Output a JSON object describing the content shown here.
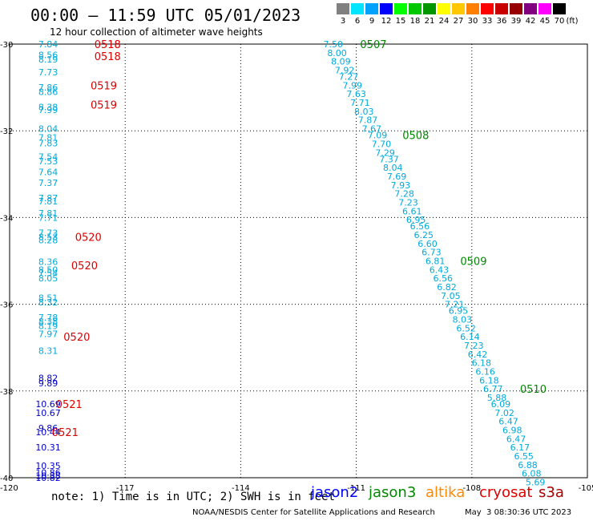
{
  "title": "00:00 – 11:59 UTC 05/01/2023",
  "subtitle": "12 hour collection of altimeter wave heights",
  "legend": {
    "unit": "(ft)",
    "items": [
      {
        "label": "3",
        "color": "#808080"
      },
      {
        "label": "6",
        "color": "#00e5ff"
      },
      {
        "label": "9",
        "color": "#00a2ff"
      },
      {
        "label": "12",
        "color": "#0000ff"
      },
      {
        "label": "15",
        "color": "#00ff00"
      },
      {
        "label": "18",
        "color": "#00c800"
      },
      {
        "label": "21",
        "color": "#009600"
      },
      {
        "label": "24",
        "color": "#ffff00"
      },
      {
        "label": "27",
        "color": "#ffc800"
      },
      {
        "label": "30",
        "color": "#ff8000"
      },
      {
        "label": "33",
        "color": "#ff0000"
      },
      {
        "label": "36",
        "color": "#c80000"
      },
      {
        "label": "39",
        "color": "#960000"
      },
      {
        "label": "42",
        "color": "#800080"
      },
      {
        "label": "45",
        "color": "#ff00ff"
      },
      {
        "label": "70",
        "color": "#000000"
      }
    ]
  },
  "axes": {
    "lon_ticks": [
      "-120",
      "-117",
      "-114",
      "-111",
      "-108",
      "-105"
    ],
    "lon_values": [
      -120,
      -117,
      -114,
      -111,
      -108,
      -105
    ],
    "lat_ticks": [
      "-30",
      "-32",
      "-34",
      "-36",
      "-38",
      "-40"
    ],
    "lat_values": [
      -30,
      -32,
      -34,
      -36,
      -38,
      -40
    ]
  },
  "colors": {
    "cyan": "#00aadd",
    "blue": "#0000cc",
    "time_red": "#dd0000",
    "time_green": "#008800",
    "jason2": "#0000ff",
    "jason3": "#008800",
    "altika": "#ff8800",
    "cryosat": "#dd0000",
    "s3a": "#aa0000"
  },
  "tracks": [
    {
      "name": "west",
      "lon": -119.0,
      "points": [
        {
          "lat": -30.0,
          "v": "7.84",
          "c": "cyan"
        },
        {
          "lat": -30.25,
          "v": "8.56",
          "c": "cyan"
        },
        {
          "lat": -30.35,
          "v": "8.19",
          "c": "cyan"
        },
        {
          "lat": -30.65,
          "v": "7.73",
          "c": "cyan"
        },
        {
          "lat": -31.0,
          "v": "7.86",
          "c": "cyan"
        },
        {
          "lat": -31.1,
          "v": "8.86",
          "c": "cyan"
        },
        {
          "lat": -31.45,
          "v": "8.38",
          "c": "cyan"
        },
        {
          "lat": -31.52,
          "v": "7.99",
          "c": "cyan"
        },
        {
          "lat": -31.95,
          "v": "8.04",
          "c": "cyan"
        },
        {
          "lat": -32.15,
          "v": "7.81",
          "c": "cyan"
        },
        {
          "lat": -32.28,
          "v": "7.83",
          "c": "cyan"
        },
        {
          "lat": -32.6,
          "v": "7.54",
          "c": "cyan"
        },
        {
          "lat": -32.7,
          "v": "7.53",
          "c": "cyan"
        },
        {
          "lat": -32.95,
          "v": "7.64",
          "c": "cyan"
        },
        {
          "lat": -33.2,
          "v": "7.37",
          "c": "cyan"
        },
        {
          "lat": -33.55,
          "v": "7.87",
          "c": "cyan"
        },
        {
          "lat": -33.62,
          "v": "7.81",
          "c": "cyan"
        },
        {
          "lat": -33.9,
          "v": "7.81",
          "c": "cyan"
        },
        {
          "lat": -34.0,
          "v": "7.71",
          "c": "cyan"
        },
        {
          "lat": -34.35,
          "v": "7.73",
          "c": "cyan"
        },
        {
          "lat": -34.45,
          "v": "8.53",
          "c": "cyan"
        },
        {
          "lat": -34.52,
          "v": "8.28",
          "c": "cyan"
        },
        {
          "lat": -35.02,
          "v": "8.36",
          "c": "cyan"
        },
        {
          "lat": -35.2,
          "v": "8.50",
          "c": "cyan"
        },
        {
          "lat": -35.28,
          "v": "7.54",
          "c": "cyan"
        },
        {
          "lat": -35.4,
          "v": "8.05",
          "c": "cyan"
        },
        {
          "lat": -35.85,
          "v": "8.51",
          "c": "cyan"
        },
        {
          "lat": -35.95,
          "v": "8.32",
          "c": "cyan"
        },
        {
          "lat": -36.3,
          "v": "7.78",
          "c": "cyan"
        },
        {
          "lat": -36.4,
          "v": "8.38",
          "c": "cyan"
        },
        {
          "lat": -36.5,
          "v": "8.19",
          "c": "cyan"
        },
        {
          "lat": -36.68,
          "v": "7.97",
          "c": "cyan"
        },
        {
          "lat": -37.07,
          "v": "8.31",
          "c": "cyan"
        },
        {
          "lat": -37.7,
          "v": "8.82",
          "c": "blue"
        },
        {
          "lat": -37.82,
          "v": "9.89",
          "c": "blue"
        },
        {
          "lat": -38.3,
          "v": "10.69",
          "c": "blue"
        },
        {
          "lat": -38.5,
          "v": "10.67",
          "c": "blue"
        },
        {
          "lat": -38.85,
          "v": "9.86",
          "c": "blue"
        },
        {
          "lat": -38.95,
          "v": "10.44",
          "c": "blue"
        },
        {
          "lat": -39.3,
          "v": "10.31",
          "c": "blue"
        },
        {
          "lat": -39.72,
          "v": "10.35",
          "c": "blue"
        },
        {
          "lat": -39.88,
          "v": "10.86",
          "c": "blue"
        },
        {
          "lat": -39.95,
          "v": "10.38",
          "c": "blue"
        },
        {
          "lat": -40.0,
          "v": "10.82",
          "c": "blue"
        }
      ],
      "times": [
        {
          "lat": -30.0,
          "lon": -117.8,
          "t": "0518",
          "c": "time_red"
        },
        {
          "lat": -30.28,
          "lon": -117.8,
          "t": "0518",
          "c": "time_red"
        },
        {
          "lat": -30.95,
          "lon": -117.9,
          "t": "0519",
          "c": "time_red"
        },
        {
          "lat": -31.4,
          "lon": -117.9,
          "t": "0519",
          "c": "time_red"
        },
        {
          "lat": -34.45,
          "lon": -118.3,
          "t": "0520",
          "c": "time_red"
        },
        {
          "lat": -35.1,
          "lon": -118.4,
          "t": "0520",
          "c": "time_red"
        },
        {
          "lat": -36.75,
          "lon": -118.6,
          "t": "0520",
          "c": "time_red"
        },
        {
          "lat": -38.3,
          "lon": -118.8,
          "t": "0521",
          "c": "time_red"
        },
        {
          "lat": -38.95,
          "lon": -118.9,
          "t": "0521",
          "c": "time_red"
        }
      ]
    },
    {
      "name": "east",
      "points": [
        {
          "lat": -30.0,
          "lon": -111.6,
          "v": "7.50",
          "c": "cyan"
        },
        {
          "lat": -30.2,
          "lon": -111.5,
          "v": "8.00",
          "c": "cyan"
        },
        {
          "lat": -30.4,
          "lon": -111.4,
          "v": "8.09",
          "c": "cyan"
        },
        {
          "lat": -30.6,
          "lon": -111.3,
          "v": "7.92",
          "c": "cyan"
        },
        {
          "lat": -30.75,
          "lon": -111.2,
          "v": "7.27",
          "c": "cyan"
        },
        {
          "lat": -30.95,
          "lon": -111.1,
          "v": "7.99",
          "c": "cyan"
        },
        {
          "lat": -31.15,
          "lon": -111.0,
          "v": "7.63",
          "c": "cyan"
        },
        {
          "lat": -31.35,
          "lon": -110.9,
          "v": "7.71",
          "c": "cyan"
        },
        {
          "lat": -31.55,
          "lon": -110.8,
          "v": "8.03",
          "c": "cyan"
        },
        {
          "lat": -31.75,
          "lon": -110.7,
          "v": "7.87",
          "c": "cyan"
        },
        {
          "lat": -31.95,
          "lon": -110.6,
          "v": "7.67",
          "c": "cyan"
        },
        {
          "lat": -32.1,
          "lon": -110.45,
          "v": "7.09",
          "c": "cyan"
        },
        {
          "lat": -32.3,
          "lon": -110.35,
          "v": "7.70",
          "c": "cyan"
        },
        {
          "lat": -32.5,
          "lon": -110.25,
          "v": "7.29",
          "c": "cyan"
        },
        {
          "lat": -32.65,
          "lon": -110.15,
          "v": "7.37",
          "c": "cyan"
        },
        {
          "lat": -32.85,
          "lon": -110.05,
          "v": "8.04",
          "c": "cyan"
        },
        {
          "lat": -33.05,
          "lon": -109.95,
          "v": "7.69",
          "c": "cyan"
        },
        {
          "lat": -33.25,
          "lon": -109.85,
          "v": "7.93",
          "c": "cyan"
        },
        {
          "lat": -33.45,
          "lon": -109.75,
          "v": "7.28",
          "c": "cyan"
        },
        {
          "lat": -33.65,
          "lon": -109.65,
          "v": "7.23",
          "c": "cyan"
        },
        {
          "lat": -33.85,
          "lon": -109.55,
          "v": "6.61",
          "c": "cyan"
        },
        {
          "lat": -34.05,
          "lon": -109.45,
          "v": "6.95",
          "c": "cyan"
        },
        {
          "lat": -34.2,
          "lon": -109.35,
          "v": "6.56",
          "c": "cyan"
        },
        {
          "lat": -34.4,
          "lon": -109.25,
          "v": "6.25",
          "c": "cyan"
        },
        {
          "lat": -34.6,
          "lon": -109.15,
          "v": "6.60",
          "c": "cyan"
        },
        {
          "lat": -34.8,
          "lon": -109.05,
          "v": "6.73",
          "c": "cyan"
        },
        {
          "lat": -35.0,
          "lon": -108.95,
          "v": "6.81",
          "c": "cyan"
        },
        {
          "lat": -35.2,
          "lon": -108.85,
          "v": "6.43",
          "c": "cyan"
        },
        {
          "lat": -35.4,
          "lon": -108.75,
          "v": "6.56",
          "c": "cyan"
        },
        {
          "lat": -35.6,
          "lon": -108.65,
          "v": "6.82",
          "c": "cyan"
        },
        {
          "lat": -35.8,
          "lon": -108.55,
          "v": "7.05",
          "c": "cyan"
        },
        {
          "lat": -36.0,
          "lon": -108.45,
          "v": "7.21",
          "c": "cyan"
        },
        {
          "lat": -36.15,
          "lon": -108.35,
          "v": "6.95",
          "c": "cyan"
        },
        {
          "lat": -36.35,
          "lon": -108.25,
          "v": "8.03",
          "c": "cyan"
        },
        {
          "lat": -36.55,
          "lon": -108.15,
          "v": "6.52",
          "c": "cyan"
        },
        {
          "lat": -36.75,
          "lon": -108.05,
          "v": "6.14",
          "c": "cyan"
        },
        {
          "lat": -36.95,
          "lon": -107.95,
          "v": "7.23",
          "c": "cyan"
        },
        {
          "lat": -37.15,
          "lon": -107.85,
          "v": "6.42",
          "c": "cyan"
        },
        {
          "lat": -37.35,
          "lon": -107.75,
          "v": "6.18",
          "c": "cyan"
        },
        {
          "lat": -37.55,
          "lon": -107.65,
          "v": "6.16",
          "c": "cyan"
        },
        {
          "lat": -37.75,
          "lon": -107.55,
          "v": "6.18",
          "c": "cyan"
        },
        {
          "lat": -37.95,
          "lon": -107.45,
          "v": "6.77",
          "c": "cyan"
        },
        {
          "lat": -38.15,
          "lon": -107.35,
          "v": "5.88",
          "c": "cyan"
        },
        {
          "lat": -38.3,
          "lon": -107.25,
          "v": "6.09",
          "c": "cyan"
        },
        {
          "lat": -38.5,
          "lon": -107.15,
          "v": "7.02",
          "c": "cyan"
        },
        {
          "lat": -38.7,
          "lon": -107.05,
          "v": "6.47",
          "c": "cyan"
        },
        {
          "lat": -38.9,
          "lon": -106.95,
          "v": "6.98",
          "c": "cyan"
        },
        {
          "lat": -39.1,
          "lon": -106.85,
          "v": "6.47",
          "c": "cyan"
        },
        {
          "lat": -39.3,
          "lon": -106.75,
          "v": "6.17",
          "c": "cyan"
        },
        {
          "lat": -39.5,
          "lon": -106.65,
          "v": "6.55",
          "c": "cyan"
        },
        {
          "lat": -39.7,
          "lon": -106.55,
          "v": "6.88",
          "c": "cyan"
        },
        {
          "lat": -39.9,
          "lon": -106.45,
          "v": "6.08",
          "c": "cyan"
        },
        {
          "lat": -40.1,
          "lon": -106.35,
          "v": "5.69",
          "c": "cyan"
        }
      ],
      "times": [
        {
          "lat": -30.0,
          "lon": -110.9,
          "t": "0507",
          "c": "time_green"
        },
        {
          "lat": -32.1,
          "lon": -109.8,
          "t": "0508",
          "c": "time_green"
        },
        {
          "lat": -35.0,
          "lon": -108.3,
          "t": "0509",
          "c": "time_green"
        },
        {
          "lat": -37.95,
          "lon": -106.75,
          "t": "0510",
          "c": "time_green"
        }
      ]
    }
  ],
  "note": "note: 1) Time is in UTC; 2) SWH is in feet",
  "satellites": [
    {
      "label": "jason2",
      "c": "jason2"
    },
    {
      "label": "jason3",
      "c": "jason3"
    },
    {
      "label": "altika",
      "c": "altika"
    },
    {
      "label": "cryosat",
      "c": "cryosat"
    },
    {
      "label": "s3a",
      "c": "s3a"
    }
  ],
  "credit": "NOAA/NESDIS Center for Satellite Applications and Research",
  "credit_time": "May  3 08:30:36 UTC 2023"
}
